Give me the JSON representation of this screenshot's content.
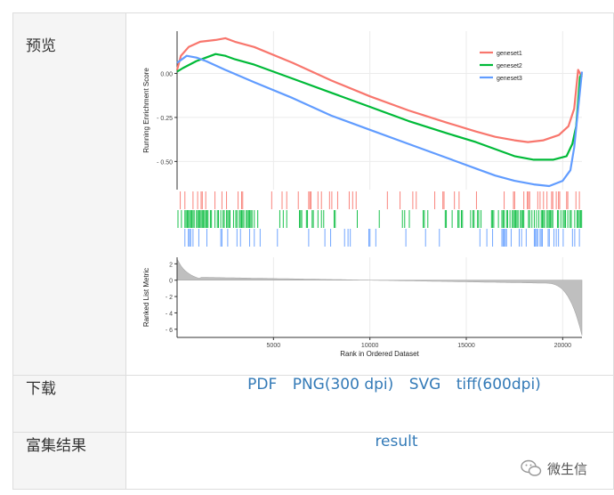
{
  "rows": {
    "preview_label": "预览",
    "download_label": "下载",
    "enrich_label": "富集结果"
  },
  "download_links": [
    {
      "label": "PDF"
    },
    {
      "label": "PNG(300 dpi)"
    },
    {
      "label": "SVG"
    },
    {
      "label": "tiff(600dpi)"
    }
  ],
  "result_link": "result",
  "watermark": "微生信",
  "colors": {
    "link": "#337ab7",
    "geneset1": "#F8766D",
    "geneset2": "#00BA38",
    "geneset3": "#619CFF"
  },
  "chart_data": {
    "type": "line",
    "title": "",
    "xlabel": "Rank in Ordered Dataset",
    "xlim": [
      0,
      21000
    ],
    "x_ticks": [
      5000,
      10000,
      15000,
      20000
    ],
    "top_panel": {
      "ylabel": "Running Enrichment Score",
      "ylim": [
        -0.66,
        0.24
      ],
      "y_ticks": [
        {
          "value": 0.0,
          "label": "0.00"
        },
        {
          "value": -0.25,
          "label": "- 0.25"
        },
        {
          "value": -0.5,
          "label": "- 0.50"
        }
      ],
      "legend_position": "top-right",
      "series": [
        {
          "name": "geneset1",
          "color": "#F8766D",
          "x": [
            0,
            200,
            600,
            1200,
            2000,
            2500,
            3000,
            4000,
            6000,
            8000,
            10000,
            12000,
            14000,
            15500,
            16500,
            17500,
            18200,
            19000,
            19800,
            20300,
            20600,
            20800,
            21000
          ],
          "y": [
            0.02,
            0.1,
            0.15,
            0.18,
            0.19,
            0.2,
            0.18,
            0.15,
            0.06,
            -0.04,
            -0.13,
            -0.21,
            -0.28,
            -0.33,
            -0.36,
            -0.38,
            -0.39,
            -0.38,
            -0.35,
            -0.3,
            -0.2,
            0.02,
            -0.02
          ]
        },
        {
          "name": "geneset2",
          "color": "#00BA38",
          "x": [
            0,
            300,
            1000,
            1500,
            2000,
            2500,
            3000,
            4000,
            6000,
            8000,
            10000,
            12000,
            14000,
            15500,
            16500,
            17500,
            18500,
            19500,
            20200,
            20500,
            20700,
            20900,
            21000
          ],
          "y": [
            0.01,
            0.03,
            0.07,
            0.09,
            0.11,
            0.1,
            0.08,
            0.05,
            -0.03,
            -0.11,
            -0.19,
            -0.27,
            -0.34,
            -0.39,
            -0.43,
            -0.47,
            -0.49,
            -0.49,
            -0.47,
            -0.4,
            -0.3,
            -0.02,
            0.0
          ]
        },
        {
          "name": "geneset3",
          "color": "#619CFF",
          "x": [
            0,
            500,
            1000,
            1500,
            2500,
            4000,
            6000,
            8000,
            10000,
            12000,
            14000,
            15500,
            16500,
            17500,
            18500,
            19300,
            20000,
            20400,
            20600,
            20800,
            21000
          ],
          "y": [
            0.06,
            0.1,
            0.09,
            0.07,
            0.02,
            -0.05,
            -0.14,
            -0.24,
            -0.32,
            -0.4,
            -0.48,
            -0.54,
            -0.58,
            -0.61,
            -0.63,
            -0.64,
            -0.61,
            -0.55,
            -0.42,
            -0.2,
            0.01
          ]
        }
      ]
    },
    "bottom_panel": {
      "ylabel": "Ranked List Metric",
      "ylim": [
        -7,
        2.8
      ],
      "y_ticks": [
        2,
        0,
        -2,
        -4,
        -6
      ],
      "fill_color": "#bfbfbf"
    }
  }
}
